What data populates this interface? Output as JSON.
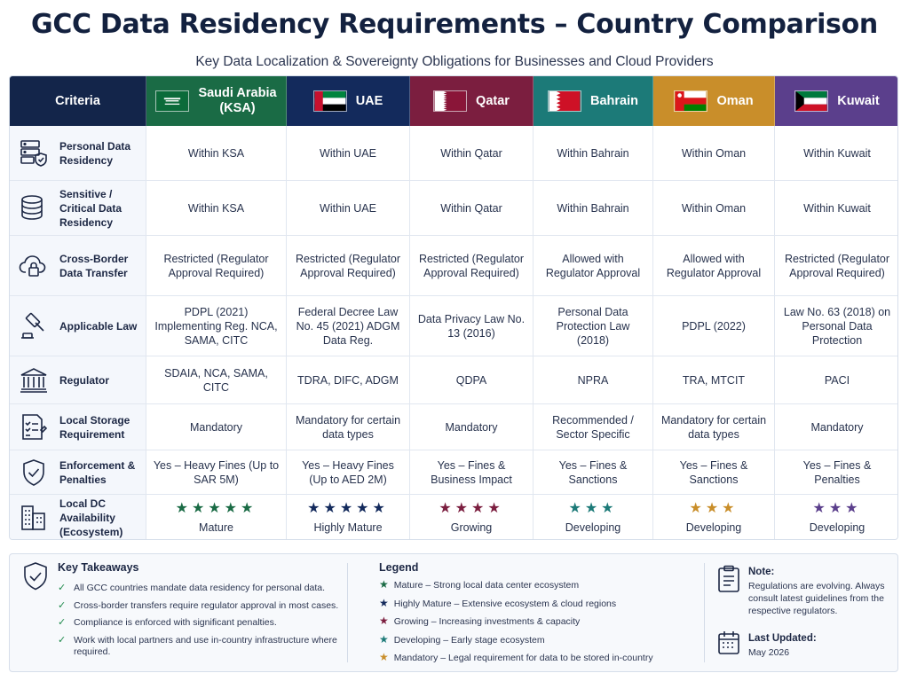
{
  "title": "GCC Data Residency Requirements – Country Comparison",
  "subtitle": "Key Data Localization & Sovereignty Obligations for Businesses and Cloud Providers",
  "header": {
    "criteria": "Criteria",
    "countries": [
      {
        "name_line1": "Saudi Arabia",
        "name_line2": "(KSA)",
        "color": "#1a6b45",
        "flag_icon": "saudi-flag-icon"
      },
      {
        "name_line1": "UAE",
        "name_line2": "",
        "color": "#132a5c",
        "flag_icon": "uae-flag-icon"
      },
      {
        "name_line1": "Qatar",
        "name_line2": "",
        "color": "#7b1e3f",
        "flag_icon": "qatar-flag-icon"
      },
      {
        "name_line1": "Bahrain",
        "name_line2": "",
        "color": "#1c7a78",
        "flag_icon": "bahrain-flag-icon"
      },
      {
        "name_line1": "Oman",
        "name_line2": "",
        "color": "#c98e2a",
        "flag_icon": "oman-flag-icon"
      },
      {
        "name_line1": "Kuwait",
        "name_line2": "",
        "color": "#5b3f8c",
        "flag_icon": "kuwait-flag-icon"
      }
    ]
  },
  "rows": [
    {
      "criteria": "Personal Data Residency",
      "icon": "server-shield-icon",
      "values": [
        "Within KSA",
        "Within UAE",
        "Within Qatar",
        "Within Bahrain",
        "Within Oman",
        "Within Kuwait"
      ]
    },
    {
      "criteria": "Sensitive / Critical Data Residency",
      "icon": "database-icon",
      "values": [
        "Within KSA",
        "Within UAE",
        "Within Qatar",
        "Within Bahrain",
        "Within Oman",
        "Within Kuwait"
      ]
    },
    {
      "criteria": "Cross-Border Data Transfer",
      "icon": "cloud-lock-icon",
      "values": [
        "Restricted (Regulator Approval Required)",
        "Restricted (Regulator Approval Required)",
        "Restricted (Regulator Approval Required)",
        "Allowed with Regulator Approval",
        "Allowed with Regulator Approval",
        "Restricted (Regulator Approval Required)"
      ]
    },
    {
      "criteria": "Applicable Law",
      "icon": "gavel-icon",
      "values": [
        "PDPL (2021) Implementing Reg. NCA, SAMA, CITC",
        "Federal Decree Law No. 45 (2021) ADGM Data Reg.",
        "Data Privacy Law No. 13 (2016)",
        "Personal Data Protection Law (2018)",
        "PDPL (2022)",
        "Law No. 63 (2018) on Personal Data Protection"
      ]
    },
    {
      "criteria": "Regulator",
      "icon": "institution-icon",
      "values": [
        "SDAIA, NCA, SAMA, CITC",
        "TDRA, DIFC, ADGM",
        "QDPA",
        "NPRA",
        "TRA, MTCIT",
        "PACI"
      ]
    },
    {
      "criteria": "Local Storage Requirement",
      "icon": "checklist-icon",
      "values": [
        "Mandatory",
        "Mandatory for certain data types",
        "Mandatory",
        "Recommended / Sector Specific",
        "Mandatory for certain data types",
        "Mandatory"
      ]
    },
    {
      "criteria": "Enforcement & Penalties",
      "icon": "shield-check-icon",
      "values": [
        "Yes – Heavy Fines (Up to SAR 5M)",
        "Yes – Heavy Fines (Up to AED 2M)",
        "Yes – Fines & Business Impact",
        "Yes – Fines & Sanctions",
        "Yes – Fines & Sanctions",
        "Yes – Fines & Penalties"
      ]
    }
  ],
  "dc_row": {
    "criteria": "Local DC Availability (Ecosystem)",
    "icon": "buildings-icon",
    "items": [
      {
        "stars": 5,
        "label": "Mature",
        "color": "#1a6b45"
      },
      {
        "stars": 5,
        "label": "Highly Mature",
        "color": "#132a5c"
      },
      {
        "stars": 4,
        "label": "Growing",
        "color": "#7b1e3f"
      },
      {
        "stars": 3,
        "label": "Developing",
        "color": "#1c7a78"
      },
      {
        "stars": 3,
        "label": "Developing",
        "color": "#c98e2a"
      },
      {
        "stars": 3,
        "label": "Developing",
        "color": "#5b3f8c"
      }
    ]
  },
  "takeaways": {
    "title": "Key Takeaways",
    "items": [
      "All GCC countries mandate data residency for personal data.",
      "Cross-border transfers require regulator approval in most cases.",
      "Compliance is enforced with significant penalties.",
      "Work with local partners and use in-country infrastructure where required."
    ]
  },
  "legend": {
    "title": "Legend",
    "items": [
      {
        "label": "Mature – Strong local data center ecosystem",
        "color": "#1a6b45"
      },
      {
        "label": "Highly Mature – Extensive ecosystem & cloud regions",
        "color": "#132a5c"
      },
      {
        "label": "Growing – Increasing investments & capacity",
        "color": "#7b1e3f"
      },
      {
        "label": "Developing – Early stage ecosystem",
        "color": "#1c7a78"
      },
      {
        "label": "Mandatory – Legal requirement for data to be stored in-country",
        "color": "#c98e2a"
      }
    ]
  },
  "note": {
    "title": "Note:",
    "text": "Regulations are evolving. Always consult latest guidelines from the respective regulators."
  },
  "updated": {
    "title": "Last Updated:",
    "text": "May 2026"
  }
}
